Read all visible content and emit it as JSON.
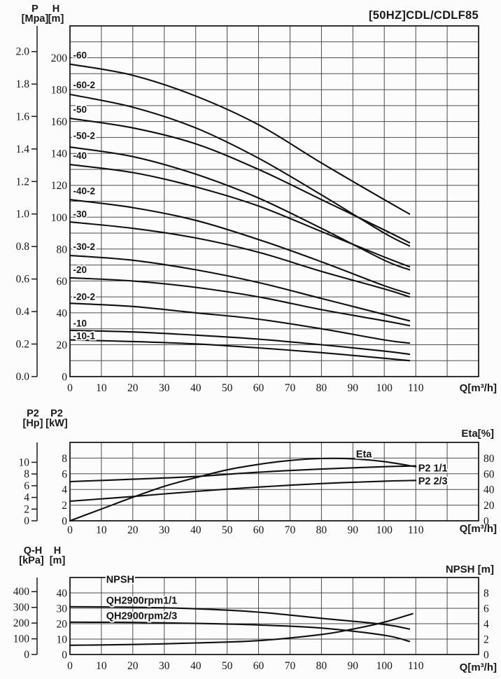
{
  "title": "[50HZ]CDL/CDLF85",
  "headers": {
    "main": {
      "left_outer_name": "P",
      "left_outer_unit": "[Mpa]",
      "left_inner_name": "H",
      "left_inner_unit": "[m]",
      "x_unit": "Q[m³/h]"
    },
    "power": {
      "left_outer_name": "P2",
      "left_outer_unit": "[Hp]",
      "left_inner_name": "P2",
      "left_inner_unit": "[kW]",
      "right_label": "Eta[%]",
      "x_unit": "Q[m³/h]"
    },
    "qh": {
      "left_outer_name": "Q-H",
      "left_outer_unit": "[kPa]",
      "left_inner_name": "H",
      "left_inner_unit": "[m]",
      "right_label": "NPSH [m]",
      "x_unit": "Q[m³/h]"
    }
  },
  "chart_data": [
    {
      "id": "main",
      "type": "line",
      "title": "[50HZ]CDL/CDLF85",
      "xlabel": "Q[m³/h]",
      "ylabel_inner": "H [m]",
      "ylabel_outer": "P [Mpa]",
      "xlim": [
        0,
        130
      ],
      "x_grid_step": 10,
      "xticks": [
        0,
        10,
        20,
        30,
        40,
        50,
        60,
        70,
        80,
        90,
        100,
        110
      ],
      "y_inner": {
        "name": "H [m]",
        "lim": [
          0,
          220
        ],
        "grid_step": 10,
        "ticks": [
          200,
          180,
          160,
          140,
          120,
          100,
          80,
          60,
          40,
          20,
          0
        ]
      },
      "y_outer": {
        "name": "P [Mpa]",
        "ticks": [
          {
            "label": "2.0",
            "at": 203.9
          },
          {
            "label": "1.8",
            "at": 183.5
          },
          {
            "label": "1.6",
            "at": 163.2
          },
          {
            "label": "1.4",
            "at": 142.8
          },
          {
            "label": "1.2",
            "at": 122.4
          },
          {
            "label": "1.0",
            "at": 102.0
          },
          {
            "label": "0.8",
            "at": 81.6
          },
          {
            "label": "0.6",
            "at": 61.2
          },
          {
            "label": "0.4",
            "at": 40.8
          },
          {
            "label": "0.2",
            "at": 20.4
          },
          {
            "label": "0.0",
            "at": 0
          }
        ]
      },
      "series": [
        {
          "name": "-60",
          "axis": "left",
          "x": [
            0,
            20,
            40,
            60,
            80,
            100,
            108
          ],
          "values": [
            196,
            189,
            176,
            158,
            134,
            111,
            102
          ],
          "label_xy": [
            1,
            199.5
          ]
        },
        {
          "name": "-60-2",
          "axis": "left",
          "x": [
            0,
            20,
            40,
            60,
            80,
            100,
            108
          ],
          "values": [
            177,
            169,
            156,
            137,
            114,
            90,
            82
          ],
          "label_xy": [
            1,
            181
          ]
        },
        {
          "name": "-50",
          "axis": "left",
          "x": [
            0,
            20,
            40,
            60,
            80,
            100,
            108
          ],
          "values": [
            162,
            156,
            146,
            130,
            111,
            92,
            84
          ],
          "label_xy": [
            1,
            165.5
          ]
        },
        {
          "name": "-50-2",
          "axis": "left",
          "x": [
            0,
            20,
            40,
            60,
            80,
            100,
            108
          ],
          "values": [
            144,
            138,
            127,
            112,
            93,
            73,
            67
          ],
          "label_xy": [
            1,
            149
          ]
        },
        {
          "name": "-40",
          "axis": "left",
          "x": [
            0,
            20,
            40,
            60,
            80,
            100,
            108
          ],
          "values": [
            133,
            128,
            119,
            107,
            91,
            75,
            69
          ],
          "label_xy": [
            1,
            136.5
          ]
        },
        {
          "name": "-40-2",
          "axis": "left",
          "x": [
            0,
            20,
            40,
            60,
            80,
            100,
            108
          ],
          "values": [
            111,
            106,
            98,
            86,
            72,
            57,
            52
          ],
          "label_xy": [
            1,
            114.5
          ]
        },
        {
          "name": "-30",
          "axis": "left",
          "x": [
            0,
            20,
            40,
            60,
            80,
            100,
            108
          ],
          "values": [
            97,
            93,
            87,
            78,
            66,
            55,
            50
          ],
          "label_xy": [
            1,
            100
          ]
        },
        {
          "name": "-30-2",
          "axis": "left",
          "x": [
            0,
            20,
            40,
            60,
            80,
            100,
            108
          ],
          "values": [
            76,
            73,
            67,
            59,
            49,
            39,
            35
          ],
          "label_xy": [
            1,
            79.5
          ]
        },
        {
          "name": "-20",
          "axis": "left",
          "x": [
            0,
            20,
            40,
            60,
            80,
            100,
            108
          ],
          "values": [
            62,
            60,
            56,
            50,
            42,
            35,
            32
          ],
          "label_xy": [
            1,
            65
          ]
        },
        {
          "name": "-20-2",
          "axis": "left",
          "x": [
            0,
            20,
            40,
            60,
            80,
            100,
            108
          ],
          "values": [
            46,
            44,
            40,
            36,
            30,
            23,
            21
          ],
          "label_xy": [
            1,
            48
          ]
        },
        {
          "name": "-10",
          "axis": "left",
          "x": [
            0,
            20,
            40,
            60,
            80,
            100,
            108
          ],
          "values": [
            29,
            28,
            26,
            23.5,
            20,
            16,
            14
          ],
          "label_xy": [
            1,
            31.5
          ]
        },
        {
          "name": "-10-1",
          "axis": "left",
          "x": [
            0,
            20,
            40,
            60,
            80,
            100,
            108
          ],
          "values": [
            23,
            22,
            20.5,
            18,
            15,
            11.5,
            10
          ],
          "label_xy": [
            1,
            23.5
          ]
        }
      ]
    },
    {
      "id": "power",
      "type": "line",
      "xlabel": "Q[m³/h]",
      "ylabel_inner": "P2 [kW]",
      "ylabel_outer": "P2 [Hp]",
      "ylabel_right": "Eta[%]",
      "xlim": [
        0,
        130
      ],
      "x_grid_step": 10,
      "xticks": [
        0,
        10,
        20,
        30,
        40,
        50,
        60,
        70,
        80,
        90,
        100,
        110
      ],
      "y_inner": {
        "name": "P2 [kW]",
        "lim": [
          0,
          10
        ],
        "grid_step": 2,
        "ticks": [
          8,
          6,
          4,
          2,
          0
        ]
      },
      "y_outer": {
        "name": "P2 [Hp]",
        "ticks": [
          {
            "label": "10",
            "at": 7.46
          },
          {
            "label": "8",
            "at": 5.97
          },
          {
            "label": "6",
            "at": 4.47
          },
          {
            "label": "4",
            "at": 2.98
          },
          {
            "label": "2",
            "at": 1.49
          },
          {
            "label": "0",
            "at": 0
          }
        ]
      },
      "y_right": {
        "name": "Eta [%]",
        "lim": [
          0,
          100
        ],
        "ticks": [
          80,
          60,
          40,
          20,
          0
        ]
      },
      "series": [
        {
          "name": "Eta",
          "axis": "right",
          "x": [
            0,
            10,
            20,
            30,
            40,
            50,
            60,
            70,
            80,
            90,
            100,
            110
          ],
          "values": [
            0,
            15,
            30,
            44,
            55,
            65,
            72,
            77,
            79.5,
            79,
            75.5,
            69
          ],
          "label_xy": [
            91,
            81
          ]
        },
        {
          "name": "P2 1/1",
          "axis": "left",
          "x": [
            0,
            20,
            40,
            60,
            80,
            100,
            110
          ],
          "values": [
            5.0,
            5.3,
            5.65,
            6.2,
            6.6,
            6.9,
            7.0
          ],
          "label_xy": [
            110.8,
            6.3
          ]
        },
        {
          "name": "P2 2/3",
          "axis": "left",
          "x": [
            0,
            20,
            40,
            60,
            80,
            100,
            110
          ],
          "values": [
            2.5,
            3.1,
            3.75,
            4.3,
            4.75,
            5.05,
            5.15
          ],
          "label_xy": [
            110.8,
            4.65
          ]
        }
      ]
    },
    {
      "id": "qh",
      "type": "line",
      "xlabel": "Q[m³/h]",
      "ylabel_inner": "H [m]",
      "ylabel_outer": "Q-H [kPa]",
      "ylabel_right": "NPSH [m]",
      "xlim": [
        0,
        130
      ],
      "x_grid_step": 10,
      "xticks": [
        0,
        10,
        20,
        30,
        40,
        50,
        60,
        70,
        80,
        90,
        100,
        110
      ],
      "y_inner": {
        "name": "H [m]",
        "lim": [
          0,
          50
        ],
        "grid_step": 10,
        "ticks": [
          40,
          30,
          20,
          10,
          0
        ]
      },
      "y_outer": {
        "name": "Q-H [kPa]",
        "ticks": [
          {
            "label": "400",
            "at": 40.8
          },
          {
            "label": "300",
            "at": 30.6
          },
          {
            "label": "200",
            "at": 20.4
          },
          {
            "label": "100",
            "at": 10.2
          },
          {
            "label": "0",
            "at": 0
          }
        ]
      },
      "y_right": {
        "name": "NPSH [m]",
        "lim": [
          0,
          10
        ],
        "ticks": [
          8,
          6,
          4,
          2,
          0
        ]
      },
      "series": [
        {
          "name": "QH2900rpm1/1",
          "axis": "left",
          "x": [
            0,
            20,
            40,
            60,
            80,
            100,
            108
          ],
          "values": [
            31,
            30.7,
            29.7,
            27.5,
            23.5,
            19.5,
            16.5
          ],
          "label_xy": [
            11.5,
            33
          ]
        },
        {
          "name": "QH2900rpm2/3",
          "axis": "left",
          "x": [
            0,
            20,
            40,
            60,
            80,
            100,
            108
          ],
          "values": [
            21,
            20.8,
            20.2,
            19.2,
            17.2,
            12.5,
            8.5
          ],
          "label_xy": [
            11.5,
            23
          ]
        },
        {
          "name": "NPSH",
          "axis": "right",
          "x": [
            0,
            20,
            40,
            60,
            80,
            90,
            100,
            109
          ],
          "values": [
            1.2,
            1.3,
            1.5,
            1.8,
            2.6,
            3.3,
            4.2,
            5.3
          ],
          "label_xy": [
            11.5,
            9.3
          ]
        }
      ]
    }
  ]
}
